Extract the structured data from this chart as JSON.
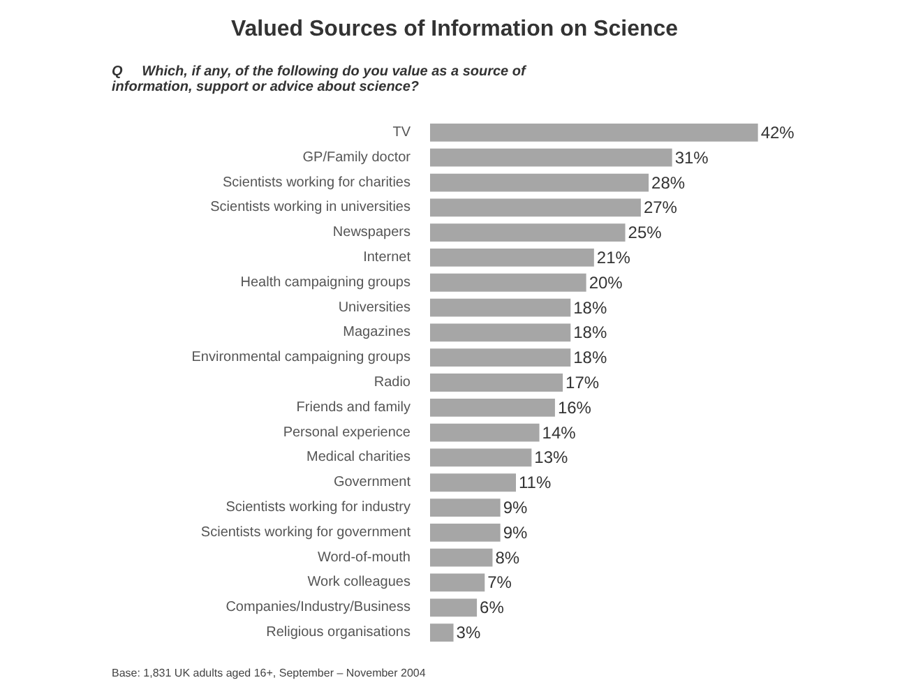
{
  "chart_data": {
    "type": "bar",
    "orientation": "horizontal",
    "title": "Valued Sources of Information on Science",
    "annotations": [
      "Base: 1,831 UK adults aged 16+, September – November 2004"
    ],
    "subtitle": "Q     Which, if any, of the following do you value as a source of information, support or advice about science?",
    "categories": [
      "TV",
      "GP/Family doctor",
      "Scientists working for charities",
      "Scientists working in universities",
      "Newspapers",
      "Internet",
      "Health campaigning groups",
      "Universities",
      "Magazines",
      "Environmental campaigning groups",
      "Radio",
      "Friends and family",
      "Personal experience",
      "Medical charities",
      "Government",
      "Scientists working for industry",
      "Scientists working for government",
      "Word-of-mouth",
      "Work colleagues",
      "Companies/Industry/Business",
      "Religious organisations"
    ],
    "values": [
      42,
      31,
      28,
      27,
      25,
      21,
      20,
      18,
      18,
      18,
      17,
      16,
      14,
      13,
      11,
      9,
      9,
      8,
      7,
      6,
      3
    ],
    "value_labels": [
      "42%",
      "31%",
      "28%",
      "27%",
      "25%",
      "21%",
      "20%",
      "18%",
      "18%",
      "18%",
      "17%",
      "16%",
      "14%",
      "13%",
      "11%",
      "9%",
      "9%",
      "8%",
      "7%",
      "6%",
      "3%"
    ],
    "color": "#a6a6a6"
  }
}
